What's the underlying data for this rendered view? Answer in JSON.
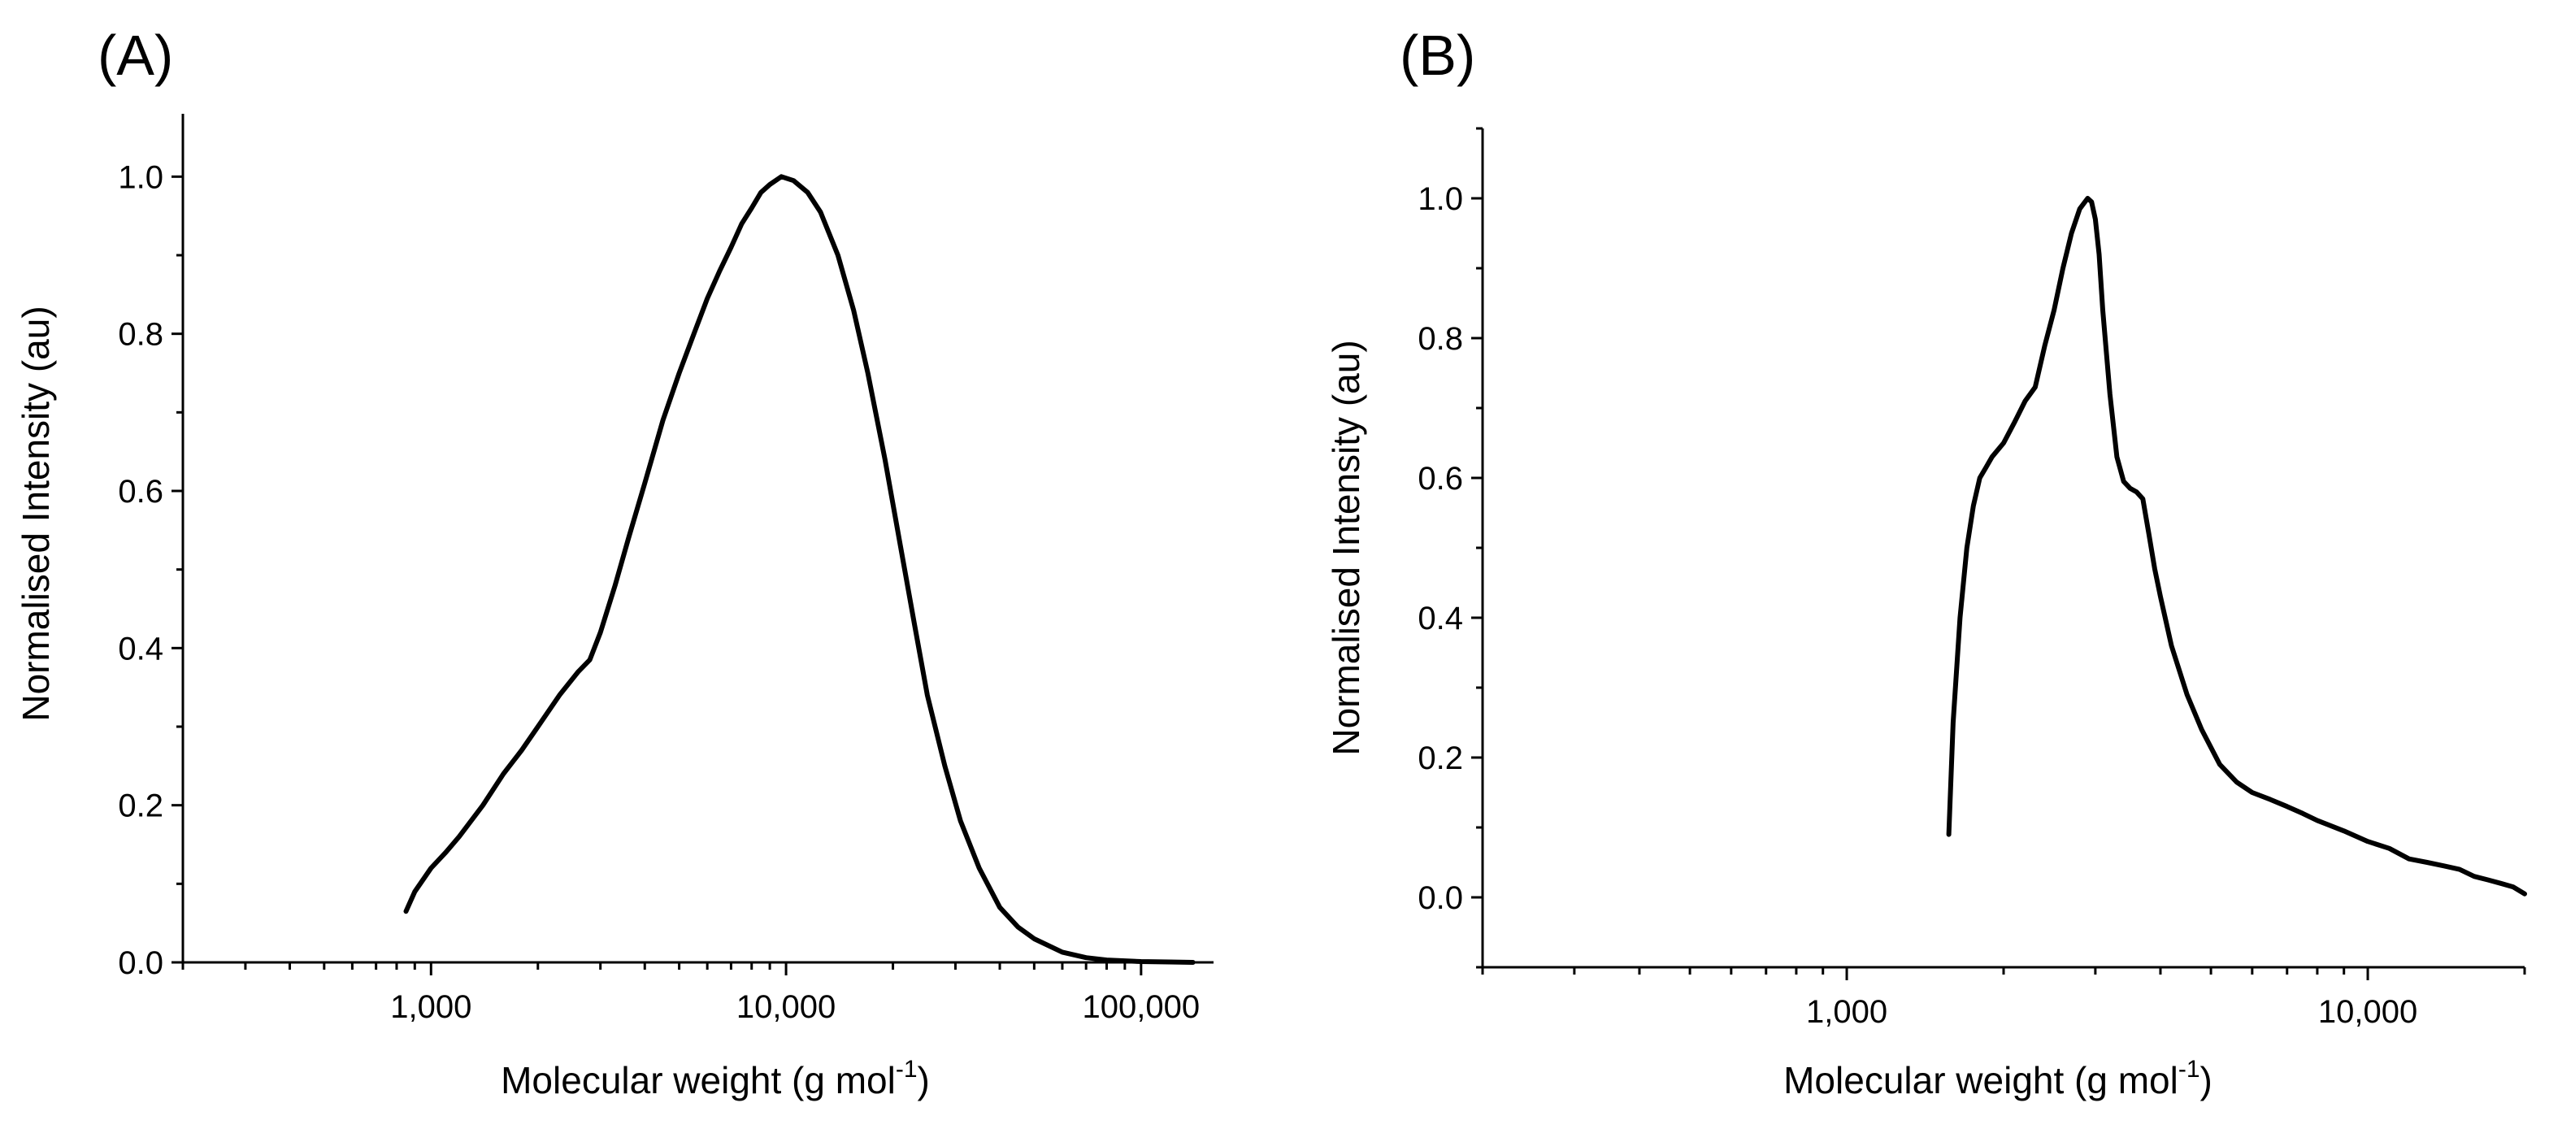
{
  "chart_data": [
    {
      "id": "A",
      "panel_label": "(A)",
      "type": "line",
      "xscale": "log",
      "xlabel": "Molecular weight (g mol",
      "xlabel_sup": "-1",
      "xlabel_end": ")",
      "ylabel": "Normalised Intensity (au)",
      "xlim": [
        200,
        160000
      ],
      "ylim": [
        0,
        1.08
      ],
      "x_ticks": [
        {
          "value": 1000,
          "label": "1,000"
        },
        {
          "value": 10000,
          "label": "10,000"
        },
        {
          "value": 100000,
          "label": "100,000"
        }
      ],
      "y_ticks": [
        {
          "value": 0.0,
          "label": "0.0"
        },
        {
          "value": 0.2,
          "label": "0.2"
        },
        {
          "value": 0.4,
          "label": "0.4"
        },
        {
          "value": 0.6,
          "label": "0.6"
        },
        {
          "value": 0.8,
          "label": "0.8"
        },
        {
          "value": 1.0,
          "label": "1.0"
        }
      ],
      "y_minor": [
        0.1,
        0.3,
        0.5,
        0.7,
        0.9
      ],
      "series": [
        {
          "name": "A",
          "x": [
            850,
            900,
            1000,
            1100,
            1200,
            1400,
            1600,
            1800,
            2000,
            2300,
            2600,
            2800,
            3000,
            3300,
            3600,
            4000,
            4500,
            5000,
            5500,
            6000,
            6500,
            7000,
            7500,
            8000,
            8500,
            9000,
            9700,
            10500,
            11500,
            12500,
            14000,
            15500,
            17000,
            19000,
            21000,
            23000,
            25000,
            28000,
            31000,
            35000,
            40000,
            45000,
            50000,
            60000,
            70000,
            80000,
            90000,
            100000,
            120000,
            140000
          ],
          "y": [
            0.065,
            0.09,
            0.12,
            0.14,
            0.16,
            0.2,
            0.24,
            0.27,
            0.3,
            0.34,
            0.37,
            0.385,
            0.42,
            0.48,
            0.54,
            0.61,
            0.69,
            0.75,
            0.8,
            0.845,
            0.88,
            0.91,
            0.94,
            0.96,
            0.98,
            0.99,
            1.0,
            0.995,
            0.98,
            0.955,
            0.9,
            0.83,
            0.75,
            0.64,
            0.53,
            0.43,
            0.34,
            0.25,
            0.18,
            0.12,
            0.07,
            0.045,
            0.03,
            0.013,
            0.006,
            0.003,
            0.002,
            0.001,
            0.0005,
            0.0
          ]
        }
      ]
    },
    {
      "id": "B",
      "panel_label": "(B)",
      "type": "line",
      "xscale": "log",
      "xlabel": "Molecular weight (g mol",
      "xlabel_sup": "-1",
      "xlabel_end": ")",
      "ylabel": "Normalised Intensity (au)",
      "xlim": [
        200,
        20000
      ],
      "ylim": [
        -0.1,
        1.1
      ],
      "x_ticks": [
        {
          "value": 1000,
          "label": "1,000"
        },
        {
          "value": 10000,
          "label": "10,000"
        }
      ],
      "y_ticks": [
        {
          "value": 0.0,
          "label": "0.0"
        },
        {
          "value": 0.2,
          "label": "0.2"
        },
        {
          "value": 0.4,
          "label": "0.4"
        },
        {
          "value": 0.6,
          "label": "0.6"
        },
        {
          "value": 0.8,
          "label": "0.8"
        },
        {
          "value": 1.0,
          "label": "1.0"
        }
      ],
      "y_minor": [
        -0.1,
        0.1,
        0.3,
        0.5,
        0.7,
        0.9,
        1.1
      ],
      "series": [
        {
          "name": "B",
          "x": [
            1570,
            1600,
            1650,
            1700,
            1750,
            1800,
            1850,
            1900,
            2000,
            2100,
            2200,
            2300,
            2400,
            2500,
            2600,
            2700,
            2800,
            2900,
            2950,
            3000,
            3050,
            3100,
            3200,
            3300,
            3400,
            3500,
            3600,
            3700,
            3800,
            3900,
            4000,
            4200,
            4500,
            4800,
            5200,
            5600,
            6000,
            6500,
            7000,
            7500,
            8000,
            9000,
            10000,
            11000,
            12000,
            13000,
            14000,
            15000,
            16000,
            17000,
            18000,
            19000,
            20000
          ],
          "y": [
            0.09,
            0.25,
            0.4,
            0.5,
            0.56,
            0.6,
            0.615,
            0.63,
            0.65,
            0.68,
            0.71,
            0.73,
            0.79,
            0.84,
            0.9,
            0.95,
            0.985,
            1.0,
            0.995,
            0.97,
            0.92,
            0.84,
            0.72,
            0.63,
            0.595,
            0.585,
            0.58,
            0.57,
            0.52,
            0.47,
            0.43,
            0.36,
            0.29,
            0.24,
            0.19,
            0.165,
            0.15,
            0.14,
            0.13,
            0.12,
            0.11,
            0.095,
            0.08,
            0.07,
            0.055,
            0.05,
            0.045,
            0.04,
            0.03,
            0.025,
            0.02,
            0.015,
            0.005
          ]
        }
      ]
    }
  ]
}
